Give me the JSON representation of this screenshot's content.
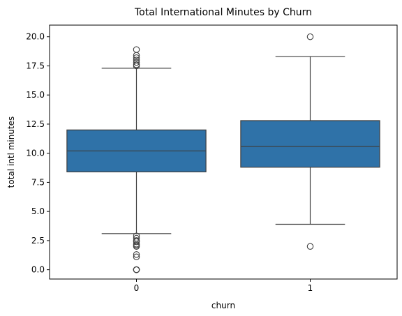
{
  "chart_data": {
    "type": "box",
    "title": "Total International Minutes by Churn",
    "xlabel": "churn",
    "ylabel": "total intl minutes",
    "categories": [
      "0",
      "1"
    ],
    "ylim": [
      -0.8,
      21.0
    ],
    "yticks": [
      "0.0",
      "2.5",
      "5.0",
      "7.5",
      "10.0",
      "12.5",
      "15.0",
      "17.5",
      "20.0"
    ],
    "grid": false,
    "legend": "none",
    "box_color": "#2f72a8",
    "series": [
      {
        "category": "0",
        "whisker_low": 3.1,
        "q1": 8.4,
        "median": 10.2,
        "q3": 12.0,
        "whisker_high": 17.3,
        "outliers": [
          0.0,
          0.0,
          0.0,
          0.0,
          1.1,
          1.3,
          2.0,
          2.1,
          2.2,
          2.4,
          2.5,
          2.7,
          2.9,
          17.5,
          17.6,
          17.8,
          18.0,
          18.2,
          18.4,
          18.9
        ]
      },
      {
        "category": "1",
        "whisker_low": 3.9,
        "q1": 8.8,
        "median": 10.6,
        "q3": 12.8,
        "whisker_high": 18.3,
        "outliers": [
          2.0,
          20.0
        ]
      }
    ]
  }
}
